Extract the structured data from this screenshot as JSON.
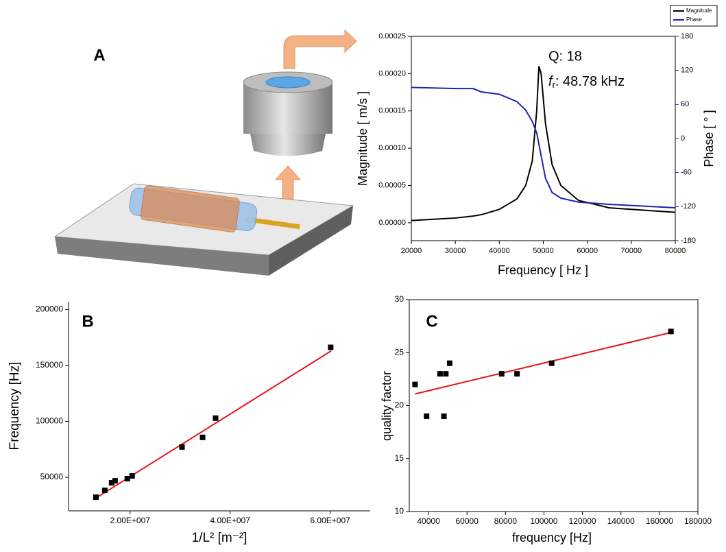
{
  "chart_data": [
    {
      "type": "line",
      "panel_label": "A",
      "x_label": "Frequency [ Hz ]",
      "y_label": "Magnitude [ m/s ]",
      "y2_label": "Phase [ ° ]",
      "annotations": [
        "Q: 18"
      ],
      "resonance": {
        "symbol": "f",
        "subscript": "r",
        "text": ": 48.78 kHz"
      },
      "x": [
        20000,
        30000,
        34000,
        36000,
        40000,
        44000,
        46000,
        47500,
        48500,
        49000,
        49500,
        50500,
        52000,
        54000,
        58000,
        65000,
        80000
      ],
      "series": [
        {
          "name": "Magnitude",
          "color": "#000000",
          "values": [
            3e-06,
            6.4e-06,
            9e-06,
            1.1e-05,
            1.8e-05,
            3.2e-05,
            5e-05,
            8.3e-05,
            0.00015,
            0.00021,
            0.0002,
            0.000133,
            7.8e-05,
            5e-05,
            3e-05,
            2e-05,
            1.4e-05
          ]
        },
        {
          "name": "Phase",
          "color": "#1f1fb4",
          "axis": "y2",
          "values": [
            90,
            88,
            88,
            82,
            78,
            65,
            50,
            30,
            10,
            -10,
            -30,
            -70,
            -95,
            -105,
            -112,
            -116,
            -122
          ]
        }
      ],
      "xlim": [
        20000,
        80000
      ],
      "xticks": [
        20000,
        30000,
        40000,
        50000,
        60000,
        70000,
        80000
      ],
      "ylim": [
        -2.4e-05,
        0.00025
      ],
      "yticks": [
        {
          "value": 0,
          "label": "0.00000"
        },
        {
          "value": 5e-05,
          "label": "0.00005"
        },
        {
          "value": 0.0001,
          "label": "0.00010"
        },
        {
          "value": 0.00015,
          "label": "0.00015"
        },
        {
          "value": 0.0002,
          "label": "0.00020"
        },
        {
          "value": 0.00025,
          "label": "0.00025"
        }
      ],
      "y2lim": [
        -180,
        180
      ],
      "y2ticks": [
        180,
        120,
        60,
        0,
        -60,
        -120,
        -180
      ],
      "legend": "top-right"
    },
    {
      "type": "scatter",
      "panel_label": "B",
      "x_label": "1/L² [m⁻²]",
      "y_label": "Frequency [Hz]",
      "color": "#000000",
      "x": [
        13170000,
        14950000,
        16310000,
        17000000,
        19450000,
        20410000,
        30380000,
        34500000,
        37100000,
        60100000
      ],
      "values": [
        32200,
        38300,
        45100,
        46900,
        48800,
        51200,
        77100,
        85700,
        102900,
        166200
      ],
      "fit": {
        "color": "#e8141b",
        "x": [
          13000000,
          60200000
        ],
        "values": [
          31000,
          163000
        ]
      },
      "xlim": [
        7700000,
        68000000
      ],
      "xticks": [
        {
          "value": 20000000,
          "label": "2.00E+007"
        },
        {
          "value": 40000000,
          "label": "4.00E+007"
        },
        {
          "value": 60000000,
          "label": "6.00E+007"
        }
      ],
      "ylim": [
        20000,
        207000
      ],
      "yticks": [
        50000,
        100000,
        150000,
        200000
      ]
    },
    {
      "type": "scatter",
      "panel_label": "C",
      "x_label": "frequency [Hz]",
      "y_label": "quality factor",
      "color": "#000000",
      "x": [
        33000,
        39000,
        46000,
        48000,
        49000,
        51000,
        78000,
        86000,
        104000,
        166000
      ],
      "values": [
        22,
        19,
        23,
        19,
        23,
        24,
        23,
        23,
        24,
        27
      ],
      "fit": {
        "color": "#e8141b",
        "x": [
          33000,
          166000
        ],
        "values": [
          21.1,
          26.9
        ]
      },
      "xlim": [
        30000,
        180000
      ],
      "xticks": [
        40000,
        60000,
        80000,
        100000,
        120000,
        140000,
        160000,
        180000
      ],
      "ylim": [
        10,
        30
      ],
      "yticks": [
        10,
        15,
        20,
        25,
        30
      ]
    }
  ]
}
